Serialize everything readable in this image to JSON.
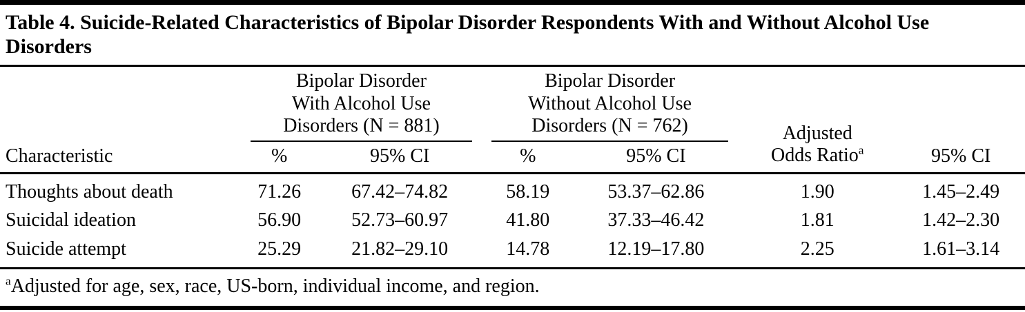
{
  "colors": {
    "background": "#ffffff",
    "text": "#000000",
    "rule": "#000000"
  },
  "table": {
    "title": "Table 4. Suicide-Related Characteristics of Bipolar Disorder Respondents With and Without Alcohol Use Disorders",
    "col_groups": [
      {
        "label": "Bipolar Disorder\nWith Alcohol Use\nDisorders (N = 881)"
      },
      {
        "label": "Bipolar Disorder\nWithout Alcohol Use\nDisorders (N = 762)"
      }
    ],
    "headers": {
      "characteristic": "Characteristic",
      "pct": "%",
      "ci": "95% CI",
      "adjusted_odds_ratio": "Adjusted\nOdds Ratio",
      "aor_superscript": "a"
    },
    "rows": [
      {
        "characteristic": "Thoughts about death",
        "with_pct": "71.26",
        "with_ci": "67.42–74.82",
        "without_pct": "58.19",
        "without_ci": "53.37–62.86",
        "aor": "1.90",
        "aor_ci": "1.45–2.49"
      },
      {
        "characteristic": "Suicidal ideation",
        "with_pct": "56.90",
        "with_ci": "52.73–60.97",
        "without_pct": "41.80",
        "without_ci": "37.33–46.42",
        "aor": "1.81",
        "aor_ci": "1.42–2.30"
      },
      {
        "characteristic": "Suicide attempt",
        "with_pct": "25.29",
        "with_ci": "21.82–29.10",
        "without_pct": "14.78",
        "without_ci": "12.19–17.80",
        "aor": "2.25",
        "aor_ci": "1.61–3.14"
      }
    ],
    "footnote": {
      "marker": "a",
      "text": "Adjusted for age, sex, race, US-born, individual income, and region."
    }
  }
}
